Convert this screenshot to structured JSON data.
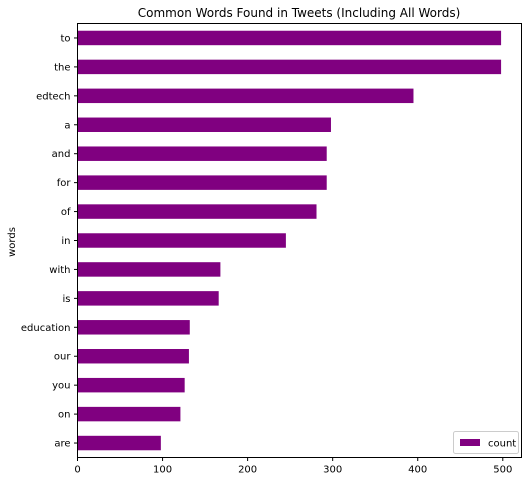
{
  "chart_data": {
    "type": "bar",
    "orientation": "horizontal",
    "title": "Common Words Found in Tweets (Including All Words)",
    "xlabel": "",
    "ylabel": "words",
    "categories": [
      "to",
      "the",
      "edtech",
      "a",
      "and",
      "for",
      "of",
      "in",
      "with",
      "is",
      "education",
      "our",
      "you",
      "on",
      "are"
    ],
    "series": [
      {
        "name": "count",
        "color": "#800080",
        "values": [
          498,
          498,
          395,
          298,
          293,
          293,
          281,
          245,
          168,
          166,
          132,
          131,
          126,
          121,
          98
        ]
      }
    ],
    "xlim": [
      0,
      522
    ],
    "xticks": [
      0,
      100,
      200,
      300,
      400,
      500
    ],
    "grid": false,
    "legend_position": "bottom-right"
  }
}
